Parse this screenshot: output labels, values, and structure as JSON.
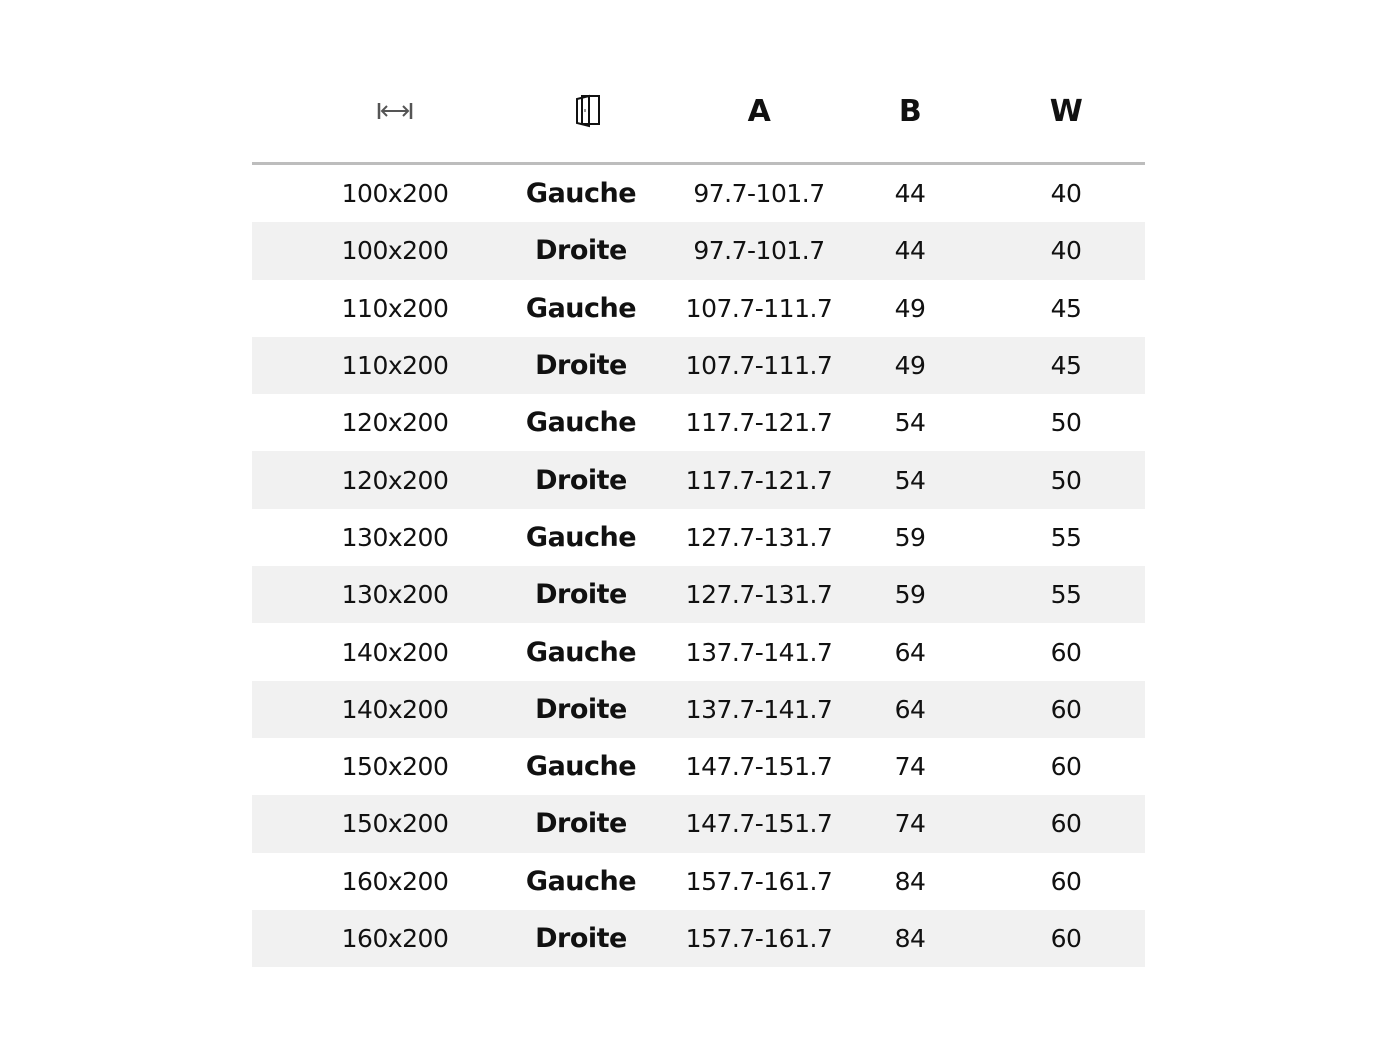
{
  "table": {
    "headers": [
      {
        "icon": "width-arrows-icon"
      },
      {
        "icon": "door-icon"
      },
      {
        "label": "A"
      },
      {
        "label": "B"
      },
      {
        "label": "W"
      }
    ],
    "rows": [
      [
        "100x200",
        "Gauche",
        "97.7-101.7",
        "44",
        "40"
      ],
      [
        "100x200",
        "Droite",
        "97.7-101.7",
        "44",
        "40"
      ],
      [
        "110x200",
        "Gauche",
        "107.7-111.7",
        "49",
        "45"
      ],
      [
        "110x200",
        "Droite",
        "107.7-111.7",
        "49",
        "45"
      ],
      [
        "120x200",
        "Gauche",
        "117.7-121.7",
        "54",
        "50"
      ],
      [
        "120x200",
        "Droite",
        "117.7-121.7",
        "54",
        "50"
      ],
      [
        "130x200",
        "Gauche",
        "127.7-131.7",
        "59",
        "55"
      ],
      [
        "130x200",
        "Droite",
        "127.7-131.7",
        "59",
        "55"
      ],
      [
        "140x200",
        "Gauche",
        "137.7-141.7",
        "64",
        "60"
      ],
      [
        "140x200",
        "Droite",
        "137.7-141.7",
        "64",
        "60"
      ],
      [
        "150x200",
        "Gauche",
        "147.7-151.7",
        "74",
        "60"
      ],
      [
        "150x200",
        "Droite",
        "147.7-151.7",
        "74",
        "60"
      ],
      [
        "160x200",
        "Gauche",
        "157.7-161.7",
        "84",
        "60"
      ],
      [
        "160x200",
        "Droite",
        "157.7-161.7",
        "84",
        "60"
      ]
    ],
    "stripe_color": "#f1f1f1",
    "header_rule_color": "#bdbdbd"
  }
}
